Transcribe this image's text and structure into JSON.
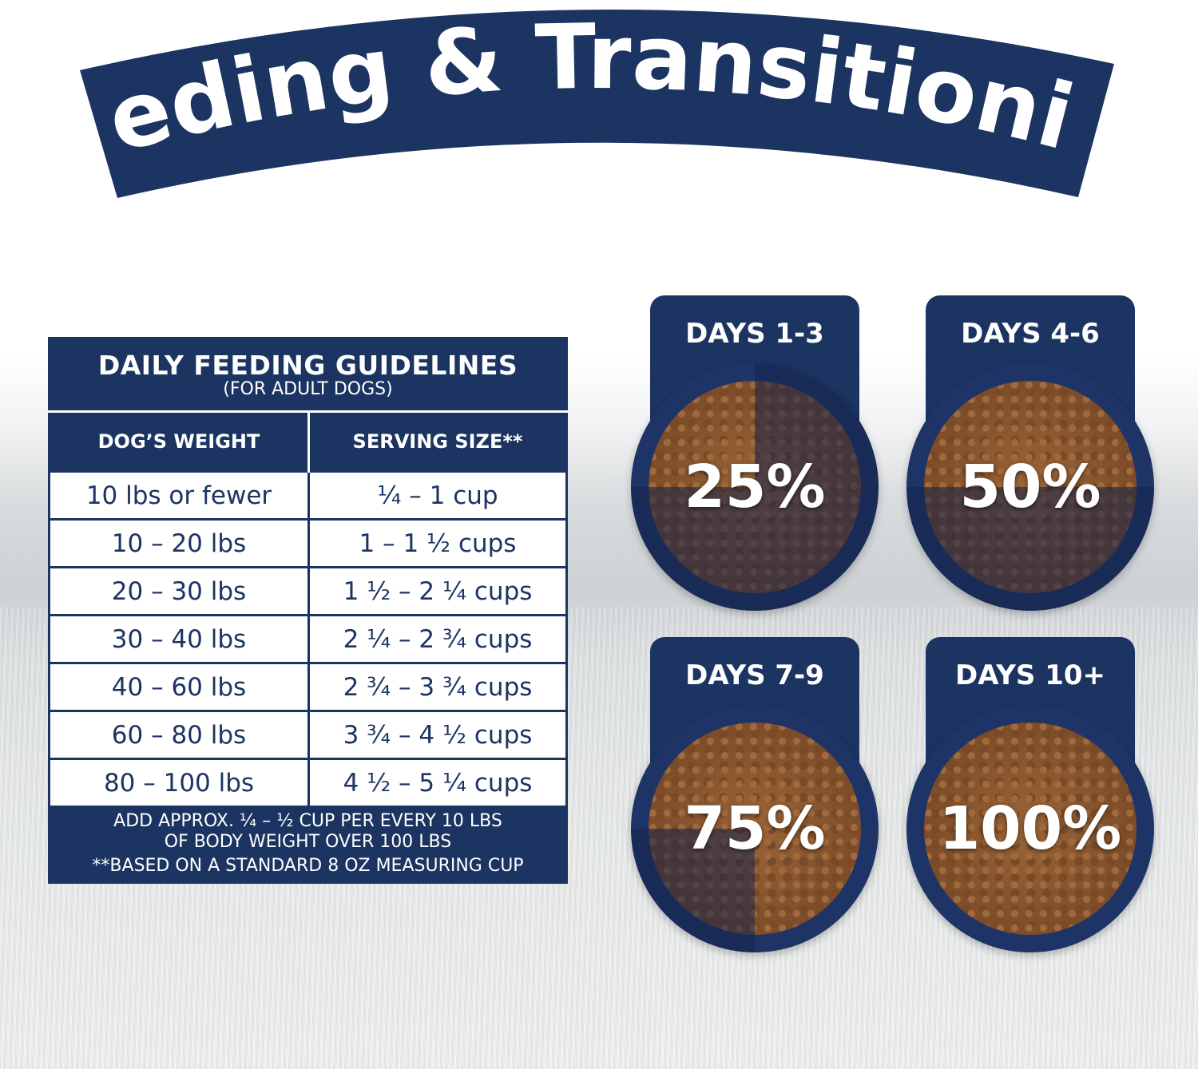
{
  "title": "Feeding & Transitioning",
  "colors": {
    "navy": "#1c3461",
    "white": "#ffffff",
    "kibble": "#8a5630"
  },
  "guidelines": {
    "title": "DAILY FEEDING GUIDELINES",
    "subtitle": "(FOR ADULT DOGS)",
    "columns": [
      "DOG’S WEIGHT",
      "SERVING SIZE**"
    ],
    "rows": [
      [
        "10 lbs or fewer",
        "¼ – 1 cup"
      ],
      [
        "10 – 20 lbs",
        "1 – 1 ½ cups"
      ],
      [
        "20 – 30 lbs",
        "1 ½ – 2 ¼ cups"
      ],
      [
        "30 – 40 lbs",
        "2 ¼ – 2 ¾ cups"
      ],
      [
        "40 – 60 lbs",
        "2 ¾ – 3 ¾ cups"
      ],
      [
        "60 – 80 lbs",
        "3 ¾ – 4 ½ cups"
      ],
      [
        "80 – 100 lbs",
        "4 ½ – 5 ¼ cups"
      ]
    ],
    "note_line1": "ADD APPROX. ¼ – ½ CUP PER EVERY 10 LBS",
    "note_line2": "OF BODY WEIGHT OVER 100 LBS",
    "footnote": "**BASED ON A STANDARD 8 OZ MEASURING CUP"
  },
  "transition": [
    {
      "days": "DAYS 1-3",
      "percent_label": "25%",
      "percent": 25
    },
    {
      "days": "DAYS 4-6",
      "percent_label": "50%",
      "percent": 50
    },
    {
      "days": "DAYS 7-9",
      "percent_label": "75%",
      "percent": 75
    },
    {
      "days": "DAYS 10+",
      "percent_label": "100%",
      "percent": 100
    }
  ]
}
